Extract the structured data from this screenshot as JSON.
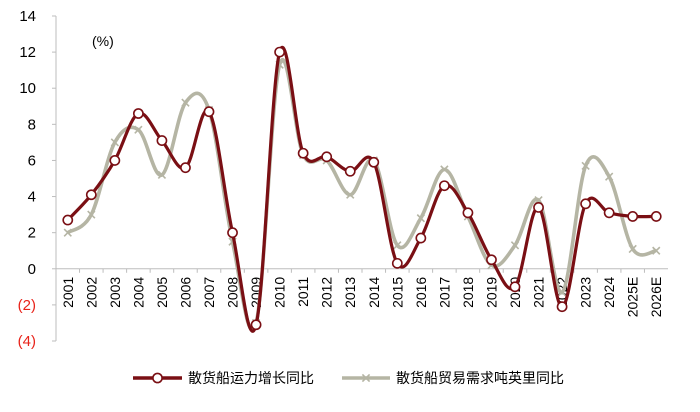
{
  "chart_data": {
    "type": "line",
    "unit_label": "(%)",
    "ylim": [
      -4,
      14
    ],
    "y_ticks": [
      {
        "value": 14,
        "label": "14",
        "negative": false
      },
      {
        "value": 12,
        "label": "12",
        "negative": false
      },
      {
        "value": 10,
        "label": "10",
        "negative": false
      },
      {
        "value": 8,
        "label": "8",
        "negative": false
      },
      {
        "value": 6,
        "label": "6",
        "negative": false
      },
      {
        "value": 4,
        "label": "4",
        "negative": false
      },
      {
        "value": 2,
        "label": "2",
        "negative": false
      },
      {
        "value": 0,
        "label": "0",
        "negative": false
      },
      {
        "value": -2,
        "label": "(2)",
        "negative": true
      },
      {
        "value": -4,
        "label": "(4)",
        "negative": true
      }
    ],
    "categories": [
      "2001",
      "2002",
      "2003",
      "2004",
      "2005",
      "2006",
      "2007",
      "2008",
      "2009",
      "2010",
      "2011",
      "2012",
      "2013",
      "2014",
      "2015",
      "2016",
      "2017",
      "2018",
      "2019",
      "2020",
      "2021",
      "2022",
      "2023",
      "2024",
      "2025E",
      "2026E"
    ],
    "series": [
      {
        "name": "散货船运力增长同比",
        "color": "#7a0f14",
        "marker": "circle",
        "values": [
          2.7,
          4.1,
          6.0,
          8.6,
          7.1,
          5.6,
          8.7,
          2.0,
          -3.1,
          12.0,
          6.4,
          6.2,
          5.4,
          5.9,
          0.3,
          1.7,
          4.6,
          3.1,
          0.5,
          -1.0,
          3.4,
          -2.1,
          3.6,
          3.1,
          2.9,
          2.9
        ]
      },
      {
        "name": "散货船贸易需求吨英里同比",
        "color": "#b5b5a4",
        "marker": "x",
        "values": [
          2.0,
          3.0,
          7.0,
          7.7,
          5.2,
          9.2,
          8.8,
          1.5,
          -3.0,
          11.3,
          6.3,
          6.0,
          4.1,
          6.0,
          1.3,
          2.8,
          5.5,
          2.9,
          0.2,
          1.3,
          3.8,
          -1.3,
          5.7,
          5.1,
          1.1,
          1.0
        ]
      }
    ],
    "legend_position": "bottom",
    "grid": false
  }
}
